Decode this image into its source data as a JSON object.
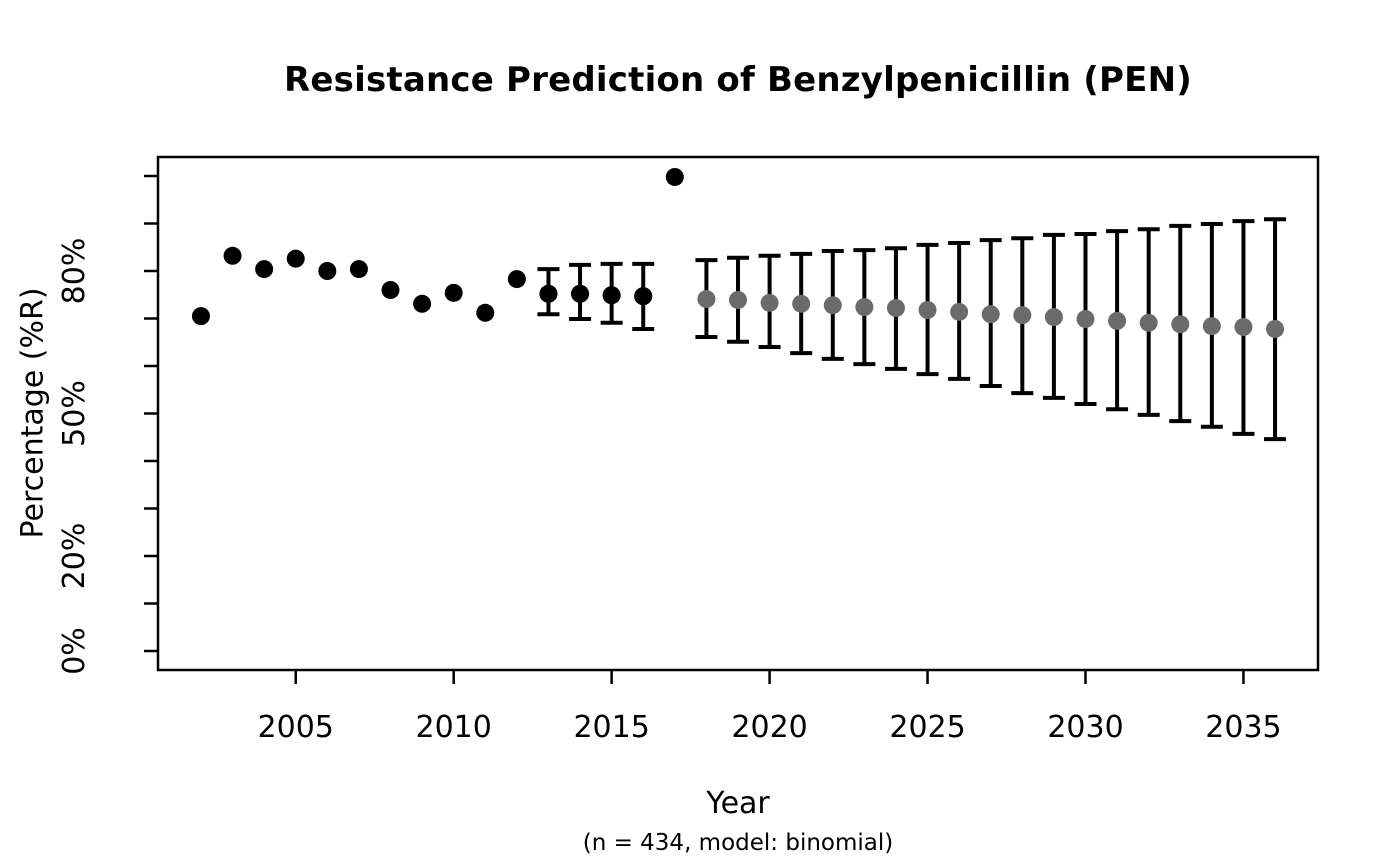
{
  "title": "Resistance Prediction of Benzylpenicillin (PEN)",
  "chart_data": {
    "type": "scatter",
    "title": "Resistance Prediction of Benzylpenicillin (PEN)",
    "xlabel": "Year",
    "xlabel_note": "(n = 434, model: binomial)",
    "ylabel": "Percentage (%R)",
    "xlim": [
      2002,
      2036
    ],
    "ylim": [
      0,
      100
    ],
    "axis_expansion": 0.04,
    "grid": false,
    "legend_position": "none",
    "x_ticks": [
      2005,
      2010,
      2015,
      2020,
      2025,
      2030,
      2035
    ],
    "y_ticks_minor_step": 10,
    "y_ticks_labeled": [
      {
        "value": 0,
        "label": "0%"
      },
      {
        "value": 20,
        "label": "20%"
      },
      {
        "value": 50,
        "label": "50%"
      },
      {
        "value": 80,
        "label": "80%"
      }
    ],
    "series": [
      {
        "name": "predicted-with-ci",
        "marker": "circle",
        "color": "#6b6b6b",
        "error_bar_color": "#000000",
        "points": [
          {
            "x": 2013,
            "y": 75.2,
            "lo": 70.9,
            "hi": 80.4,
            "c": "#000000"
          },
          {
            "x": 2014,
            "y": 75.2,
            "lo": 69.9,
            "hi": 81.3,
            "c": "#000000"
          },
          {
            "x": 2015,
            "y": 74.9,
            "lo": 69.1,
            "hi": 81.5,
            "c": "#000000"
          },
          {
            "x": 2016,
            "y": 74.7,
            "lo": 67.8,
            "hi": 81.5,
            "c": "#000000"
          },
          {
            "x": 2018,
            "y": 74.1,
            "lo": 66.1,
            "hi": 82.3
          },
          {
            "x": 2019,
            "y": 73.9,
            "lo": 65.1,
            "hi": 82.8
          },
          {
            "x": 2020,
            "y": 73.3,
            "lo": 64.0,
            "hi": 83.2
          },
          {
            "x": 2021,
            "y": 73.1,
            "lo": 62.7,
            "hi": 83.6
          },
          {
            "x": 2022,
            "y": 72.8,
            "lo": 61.5,
            "hi": 84.2
          },
          {
            "x": 2023,
            "y": 72.4,
            "lo": 60.4,
            "hi": 84.4
          },
          {
            "x": 2024,
            "y": 72.2,
            "lo": 59.4,
            "hi": 84.8
          },
          {
            "x": 2025,
            "y": 71.8,
            "lo": 58.3,
            "hi": 85.5
          },
          {
            "x": 2026,
            "y": 71.4,
            "lo": 57.3,
            "hi": 85.9
          },
          {
            "x": 2027,
            "y": 70.9,
            "lo": 55.8,
            "hi": 86.5
          },
          {
            "x": 2028,
            "y": 70.7,
            "lo": 54.3,
            "hi": 86.9
          },
          {
            "x": 2029,
            "y": 70.3,
            "lo": 53.3,
            "hi": 87.6
          },
          {
            "x": 2030,
            "y": 69.9,
            "lo": 52.0,
            "hi": 87.8
          },
          {
            "x": 2031,
            "y": 69.5,
            "lo": 50.9,
            "hi": 88.4
          },
          {
            "x": 2032,
            "y": 69.1,
            "lo": 49.7,
            "hi": 88.8
          },
          {
            "x": 2033,
            "y": 68.8,
            "lo": 48.4,
            "hi": 89.5
          },
          {
            "x": 2034,
            "y": 68.4,
            "lo": 47.2,
            "hi": 89.9
          },
          {
            "x": 2035,
            "y": 68.2,
            "lo": 45.7,
            "hi": 90.5
          },
          {
            "x": 2036,
            "y": 67.8,
            "lo": 44.6,
            "hi": 90.9
          }
        ]
      },
      {
        "name": "observed",
        "marker": "circle",
        "color": "#000000",
        "points": [
          {
            "x": 2002,
            "y": 70.5
          },
          {
            "x": 2003,
            "y": 83.2
          },
          {
            "x": 2004,
            "y": 80.4
          },
          {
            "x": 2005,
            "y": 82.6
          },
          {
            "x": 2006,
            "y": 80.0
          },
          {
            "x": 2007,
            "y": 80.4
          },
          {
            "x": 2008,
            "y": 76.0
          },
          {
            "x": 2009,
            "y": 73.1
          },
          {
            "x": 2010,
            "y": 75.4
          },
          {
            "x": 2011,
            "y": 71.2
          },
          {
            "x": 2012,
            "y": 78.3
          },
          {
            "x": 2013,
            "y": 75.2
          },
          {
            "x": 2014,
            "y": 75.2
          },
          {
            "x": 2015,
            "y": 74.9
          },
          {
            "x": 2016,
            "y": 74.7
          },
          {
            "x": 2017,
            "y": 99.8
          }
        ]
      }
    ]
  },
  "style": {
    "axis_color": "#000000",
    "observed_color": "#000000",
    "predicted_color": "#6b6b6b",
    "background": "#ffffff"
  }
}
